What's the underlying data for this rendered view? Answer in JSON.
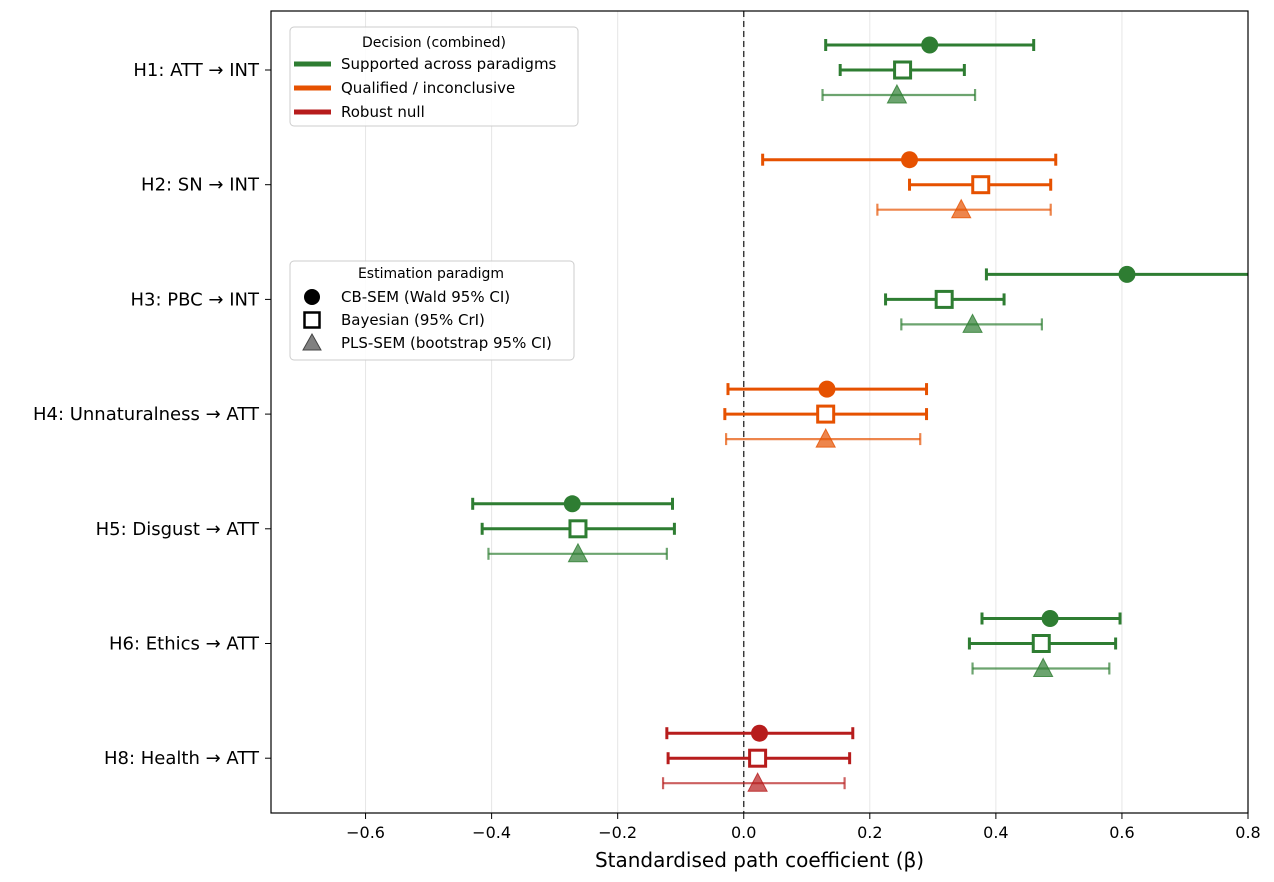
{
  "chart_data": {
    "type": "scatter",
    "xlabel": "Standardised path coefficient (β)",
    "xlim": [
      -0.75,
      0.8
    ],
    "xticks": [
      -0.6,
      -0.4,
      -0.2,
      0.0,
      0.2,
      0.4,
      0.6,
      0.8
    ],
    "xtick_labels": [
      "−0.6",
      "−0.4",
      "−0.2",
      "0.0",
      "0.2",
      "0.4",
      "0.6",
      "0.8"
    ],
    "reference_line_x": 0,
    "grid": "vertical",
    "categories": [
      "H1: ATT → INT",
      "H2: SN → INT",
      "H3: PBC → INT",
      "H4: Unnaturalness → ATT",
      "H5: Disgust → ATT",
      "H6: Ethics → ATT",
      "H8: Health → ATT"
    ],
    "decisions": [
      "supported",
      "qualified",
      "supported",
      "qualified",
      "supported",
      "supported",
      "null"
    ],
    "series": [
      {
        "name": "CB-SEM (Wald 95% CI)",
        "marker": "circle",
        "estimate": [
          0.295,
          0.263,
          0.608,
          0.132,
          -0.272,
          0.486,
          0.025
        ],
        "lower": [
          0.13,
          0.03,
          0.385,
          -0.025,
          -0.43,
          0.378,
          -0.122
        ],
        "upper": [
          0.46,
          0.495,
          0.83,
          0.29,
          -0.113,
          0.597,
          0.173
        ]
      },
      {
        "name": "Bayesian (95% CrI)",
        "marker": "square",
        "estimate": [
          0.252,
          0.376,
          0.318,
          0.13,
          -0.263,
          0.472,
          0.022
        ],
        "lower": [
          0.153,
          0.263,
          0.225,
          -0.03,
          -0.415,
          0.358,
          -0.12
        ],
        "upper": [
          0.35,
          0.487,
          0.413,
          0.29,
          -0.11,
          0.59,
          0.168
        ]
      },
      {
        "name": "PLS-SEM (bootstrap 95% CI)",
        "marker": "triangle",
        "estimate": [
          0.243,
          0.345,
          0.363,
          0.13,
          -0.263,
          0.475,
          0.022
        ],
        "lower": [
          0.125,
          0.212,
          0.25,
          -0.028,
          -0.405,
          0.363,
          -0.128
        ],
        "upper": [
          0.367,
          0.487,
          0.473,
          0.28,
          -0.122,
          0.58,
          0.16
        ]
      }
    ],
    "legend_decision": {
      "title": "Decision (combined)",
      "placement": "top-left",
      "entries": [
        {
          "key": "supported",
          "label": "Supported across paradigms",
          "color": "#2e7d32"
        },
        {
          "key": "qualified",
          "label": "Qualified / inconclusive",
          "color": "#e65100"
        },
        {
          "key": "null",
          "label": "Robust null",
          "color": "#b71c1c"
        }
      ]
    },
    "legend_paradigm": {
      "title": "Estimation paradigm",
      "placement": "center-left",
      "entries": [
        {
          "marker": "circle",
          "label": "CB-SEM (Wald 95% CI)"
        },
        {
          "marker": "square",
          "label": "Bayesian (95% CrI)"
        },
        {
          "marker": "triangle",
          "label": "PLS-SEM (bootstrap 95% CI)"
        }
      ]
    }
  }
}
